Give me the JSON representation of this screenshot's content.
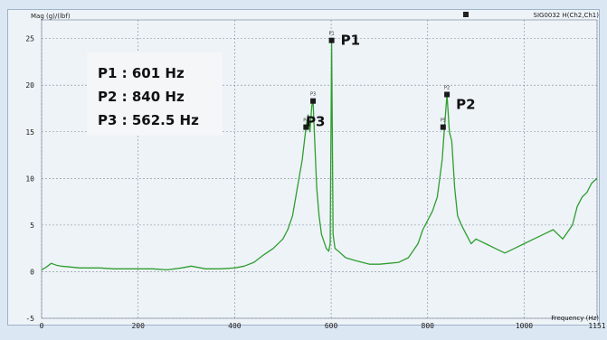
{
  "chart_data": {
    "type": "line",
    "title": "",
    "ylabel": "Mag (g)/(lbf)",
    "xlabel": "Frequency (Hz)",
    "xlim": [
      0,
      1151
    ],
    "ylim": [
      -5,
      27
    ],
    "x_ticks": [
      0,
      200,
      400,
      600,
      800,
      1000,
      1151
    ],
    "x_tick_labels": [
      "0",
      "200",
      "400",
      "600",
      "800",
      "1000",
      "1151"
    ],
    "y_ticks": [
      -5,
      0,
      5,
      10,
      15,
      20,
      25
    ],
    "y_tick_labels": [
      "-5",
      "0",
      "5",
      "10",
      "15",
      "20",
      "25"
    ],
    "grid": true,
    "legend": {
      "position": "top-right",
      "entries": [
        "SIG0032 H(Ch2,Ch1)"
      ]
    },
    "series": [
      {
        "name": "SIG0032 H(Ch2,Ch1)",
        "color": "#2e9e2e",
        "x": [
          0,
          10,
          20,
          30,
          40,
          60,
          80,
          100,
          120,
          150,
          180,
          200,
          230,
          260,
          290,
          310,
          340,
          370,
          400,
          420,
          440,
          460,
          480,
          500,
          510,
          520,
          530,
          540,
          548,
          552,
          556,
          560,
          562.5,
          566,
          570,
          575,
          580,
          590,
          595,
          598,
          601,
          604,
          608,
          615,
          630,
          650,
          680,
          700,
          720,
          740,
          760,
          780,
          790,
          800,
          810,
          820,
          830,
          835,
          840,
          845,
          850,
          856,
          862,
          870,
          880,
          890,
          900,
          920,
          940,
          960,
          980,
          1000,
          1020,
          1040,
          1060,
          1080,
          1100,
          1110,
          1120,
          1130,
          1140,
          1151
        ],
        "y": [
          0.2,
          0.5,
          0.9,
          0.7,
          0.6,
          0.5,
          0.4,
          0.4,
          0.4,
          0.3,
          0.3,
          0.3,
          0.3,
          0.2,
          0.4,
          0.6,
          0.3,
          0.3,
          0.4,
          0.6,
          1.0,
          1.8,
          2.5,
          3.5,
          4.5,
          6,
          9,
          12,
          15.5,
          16.8,
          15,
          17.8,
          18.3,
          14,
          9,
          6,
          4,
          2.5,
          2.2,
          3,
          24.8,
          4,
          2.5,
          2.2,
          1.5,
          1.2,
          0.8,
          0.8,
          0.9,
          1.0,
          1.5,
          3,
          4.5,
          5.5,
          6.5,
          8,
          12,
          15.5,
          19,
          15,
          14,
          9,
          6,
          5,
          4,
          3,
          3.5,
          3,
          2.5,
          2,
          2.5,
          3,
          3.5,
          4,
          4.5,
          3.5,
          5,
          7,
          8,
          8.5,
          9.5,
          10
        ]
      }
    ],
    "markers": [
      {
        "id": "P1",
        "x": 601,
        "y": 24.8,
        "small_label": "P1"
      },
      {
        "id": "P2",
        "x": 840,
        "y": 19.0,
        "small_label": "P2"
      },
      {
        "id": "P3",
        "x": 562.5,
        "y": 18.3,
        "small_label": "P3"
      },
      {
        "id": "m4",
        "x": 548,
        "y": 15.5,
        "small_label": "P4"
      },
      {
        "id": "m5",
        "x": 832,
        "y": 15.5,
        "small_label": "P5"
      }
    ],
    "annotations": [
      {
        "name": "peak-label-p1",
        "text": "P1",
        "x": 601,
        "y": 24.8
      },
      {
        "name": "peak-label-p2",
        "text": "P2",
        "x": 840,
        "y": 19.0
      },
      {
        "name": "peak-label-p3",
        "text": "P3",
        "x": 562.5,
        "y": 18.3
      }
    ],
    "annotation_box": {
      "lines": [
        "P1 : 601 Hz",
        "P2 : 840 Hz",
        "P3 : 562.5 Hz"
      ]
    }
  },
  "colors": {
    "frame": "#dbe7f3",
    "plot_bg": "#eef3f8",
    "grid": "#7a8899",
    "line": "#2e9e2e",
    "marker": "#1a1a1a",
    "annotation_box_bg": "#f4f6f8"
  }
}
